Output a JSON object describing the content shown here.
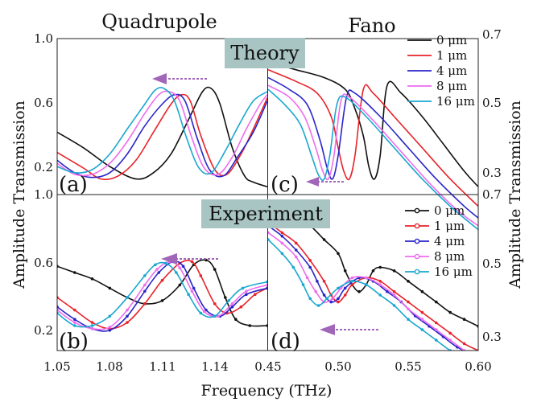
{
  "chart_data": [
    {
      "panel": "(a)",
      "type": "line",
      "column_header": "Quadrupole",
      "row_label": "Theory",
      "x_range": [
        1.05,
        1.17
      ],
      "y_range": [
        0.0,
        1.0
      ],
      "x_ticks": [
        "1.05",
        "1.08",
        "1.11",
        "1.14"
      ],
      "y_ticks": [
        "1.0",
        "0.6",
        "0.2"
      ],
      "series": [
        {
          "name": "0 μm",
          "color": "#111111",
          "x": [
            1.05,
            1.065,
            1.08,
            1.095,
            1.105,
            1.115,
            1.125,
            1.133,
            1.138,
            1.143,
            1.15,
            1.157,
            1.162,
            1.17
          ],
          "y": [
            0.4,
            0.3,
            0.18,
            0.1,
            0.14,
            0.26,
            0.48,
            0.66,
            0.68,
            0.58,
            0.3,
            0.12,
            0.08,
            0.05
          ]
        },
        {
          "name": "1 μm",
          "color": "#e8232a",
          "x": [
            1.05,
            1.065,
            1.075,
            1.085,
            1.095,
            1.105,
            1.115,
            1.121,
            1.126,
            1.132,
            1.14,
            1.147,
            1.155,
            1.162,
            1.17
          ],
          "y": [
            0.27,
            0.17,
            0.1,
            0.12,
            0.22,
            0.4,
            0.58,
            0.64,
            0.6,
            0.38,
            0.16,
            0.13,
            0.26,
            0.42,
            0.62
          ]
        },
        {
          "name": "4 μm",
          "color": "#2a25c8",
          "x": [
            1.05,
            1.06,
            1.07,
            1.08,
            1.09,
            1.1,
            1.11,
            1.117,
            1.123,
            1.13,
            1.137,
            1.145,
            1.153,
            1.162,
            1.17
          ],
          "y": [
            0.22,
            0.14,
            0.11,
            0.14,
            0.26,
            0.44,
            0.58,
            0.64,
            0.6,
            0.36,
            0.16,
            0.12,
            0.24,
            0.4,
            0.6
          ]
        },
        {
          "name": "8 μm",
          "color": "#ee6cef",
          "x": [
            1.05,
            1.06,
            1.07,
            1.08,
            1.09,
            1.1,
            1.108,
            1.114,
            1.12,
            1.127,
            1.134,
            1.142,
            1.15,
            1.158,
            1.166,
            1.17
          ],
          "y": [
            0.2,
            0.13,
            0.13,
            0.2,
            0.34,
            0.52,
            0.64,
            0.66,
            0.6,
            0.36,
            0.17,
            0.13,
            0.24,
            0.42,
            0.58,
            0.64
          ]
        },
        {
          "name": "16 μm",
          "color": "#1aa7d0",
          "x": [
            1.05,
            1.06,
            1.07,
            1.08,
            1.09,
            1.1,
            1.106,
            1.111,
            1.117,
            1.124,
            1.131,
            1.138,
            1.146,
            1.154,
            1.162,
            1.17
          ],
          "y": [
            0.18,
            0.14,
            0.16,
            0.26,
            0.42,
            0.58,
            0.67,
            0.68,
            0.6,
            0.36,
            0.17,
            0.14,
            0.28,
            0.45,
            0.6,
            0.66
          ]
        }
      ]
    },
    {
      "panel": "(c)",
      "type": "line",
      "column_header": "Fano",
      "row_label": "Theory",
      "x_range": [
        0.45,
        0.6
      ],
      "y_range": [
        0.3,
        0.7
      ],
      "y_ticks": [
        "0.7",
        "0.5",
        "0.3"
      ],
      "series": [
        {
          "name": "0 μm",
          "color": "#111111",
          "x": [
            0.45,
            0.47,
            0.49,
            0.505,
            0.512,
            0.518,
            0.522,
            0.526,
            0.53,
            0.535,
            0.545,
            0.56,
            0.575,
            0.59,
            0.6
          ],
          "y": [
            0.64,
            0.62,
            0.6,
            0.57,
            0.52,
            0.45,
            0.37,
            0.34,
            0.4,
            0.58,
            0.56,
            0.5,
            0.43,
            0.36,
            0.32
          ]
        },
        {
          "name": "1 μm",
          "color": "#e8232a",
          "x": [
            0.45,
            0.47,
            0.485,
            0.495,
            0.5,
            0.504,
            0.508,
            0.512,
            0.518,
            0.525,
            0.54,
            0.56,
            0.58,
            0.6
          ],
          "y": [
            0.62,
            0.59,
            0.56,
            0.5,
            0.42,
            0.36,
            0.34,
            0.4,
            0.57,
            0.56,
            0.5,
            0.42,
            0.34,
            0.27
          ]
        },
        {
          "name": "4 μm",
          "color": "#2a25c8",
          "x": [
            0.45,
            0.465,
            0.478,
            0.487,
            0.492,
            0.496,
            0.5,
            0.506,
            0.512,
            0.53,
            0.55,
            0.57,
            0.59,
            0.6
          ],
          "y": [
            0.6,
            0.57,
            0.53,
            0.44,
            0.37,
            0.34,
            0.4,
            0.55,
            0.56,
            0.5,
            0.42,
            0.34,
            0.27,
            0.24
          ]
        },
        {
          "name": "8 μm",
          "color": "#ee6cef",
          "x": [
            0.45,
            0.465,
            0.476,
            0.484,
            0.489,
            0.493,
            0.497,
            0.502,
            0.508,
            0.525,
            0.545,
            0.565,
            0.585,
            0.6
          ],
          "y": [
            0.58,
            0.55,
            0.5,
            0.42,
            0.36,
            0.34,
            0.4,
            0.54,
            0.55,
            0.49,
            0.41,
            0.33,
            0.26,
            0.22
          ]
        },
        {
          "name": "16 μm",
          "color": "#1aa7d0",
          "x": [
            0.45,
            0.462,
            0.473,
            0.481,
            0.486,
            0.49,
            0.494,
            0.499,
            0.505,
            0.52,
            0.54,
            0.56,
            0.58,
            0.6
          ],
          "y": [
            0.57,
            0.53,
            0.48,
            0.4,
            0.35,
            0.34,
            0.4,
            0.53,
            0.55,
            0.5,
            0.42,
            0.34,
            0.27,
            0.21
          ]
        }
      ]
    },
    {
      "panel": "(b)",
      "type": "line",
      "row_label": "Experiment",
      "x_range": [
        1.05,
        1.17
      ],
      "y_range": [
        0.0,
        1.0
      ],
      "x_ticks": [
        "1.05",
        "1.08",
        "1.11",
        "1.14"
      ],
      "y_ticks": [
        "1.0",
        "0.6",
        "0.2"
      ],
      "series": [
        {
          "name": "0 μm",
          "color": "#111111",
          "x": [
            1.05,
            1.06,
            1.07,
            1.08,
            1.09,
            1.1,
            1.11,
            1.12,
            1.128,
            1.135,
            1.14,
            1.146,
            1.152,
            1.16,
            1.17
          ],
          "y": [
            0.54,
            0.5,
            0.46,
            0.4,
            0.34,
            0.3,
            0.32,
            0.42,
            0.55,
            0.58,
            0.52,
            0.34,
            0.2,
            0.16,
            0.16
          ]
        },
        {
          "name": "1 μm",
          "color": "#e8232a",
          "x": [
            1.05,
            1.06,
            1.07,
            1.08,
            1.09,
            1.1,
            1.11,
            1.12,
            1.127,
            1.132,
            1.14,
            1.147,
            1.155,
            1.163,
            1.17
          ],
          "y": [
            0.34,
            0.26,
            0.18,
            0.14,
            0.18,
            0.3,
            0.45,
            0.56,
            0.57,
            0.48,
            0.3,
            0.24,
            0.28,
            0.36,
            0.4
          ]
        },
        {
          "name": "4 μm",
          "color": "#2a25c8",
          "x": [
            1.05,
            1.06,
            1.07,
            1.08,
            1.09,
            1.1,
            1.108,
            1.116,
            1.122,
            1.128,
            1.135,
            1.143,
            1.15,
            1.158,
            1.17
          ],
          "y": [
            0.28,
            0.2,
            0.14,
            0.13,
            0.22,
            0.38,
            0.5,
            0.57,
            0.54,
            0.4,
            0.26,
            0.22,
            0.28,
            0.36,
            0.4
          ]
        },
        {
          "name": "8 μm",
          "color": "#ee6cef",
          "x": [
            1.05,
            1.06,
            1.07,
            1.08,
            1.09,
            1.1,
            1.107,
            1.114,
            1.12,
            1.127,
            1.134,
            1.142,
            1.15,
            1.158,
            1.17
          ],
          "y": [
            0.26,
            0.18,
            0.14,
            0.15,
            0.26,
            0.42,
            0.52,
            0.57,
            0.53,
            0.38,
            0.25,
            0.22,
            0.3,
            0.38,
            0.42
          ]
        },
        {
          "name": "16 μm",
          "color": "#1aa7d0",
          "x": [
            1.05,
            1.06,
            1.07,
            1.08,
            1.09,
            1.1,
            1.106,
            1.112,
            1.118,
            1.125,
            1.132,
            1.14,
            1.148,
            1.156,
            1.17
          ],
          "y": [
            0.24,
            0.16,
            0.16,
            0.22,
            0.34,
            0.48,
            0.55,
            0.56,
            0.5,
            0.36,
            0.24,
            0.22,
            0.32,
            0.4,
            0.44
          ]
        }
      ]
    },
    {
      "panel": "(d)",
      "type": "line",
      "row_label": "Experiment",
      "x_range": [
        0.45,
        0.6
      ],
      "y_range": [
        0.25,
        0.7
      ],
      "x_ticks": [
        "0.45",
        "0.50",
        "0.55",
        "0.60"
      ],
      "y_ticks": [
        "0.7",
        "0.5",
        "0.3"
      ],
      "series": [
        {
          "name": "0 μm",
          "color": "#111111",
          "x": [
            0.45,
            0.46,
            0.47,
            0.48,
            0.49,
            0.5,
            0.505,
            0.51,
            0.515,
            0.52,
            0.525,
            0.53,
            0.54,
            0.55,
            0.56,
            0.57,
            0.58,
            0.59,
            0.6
          ],
          "y": [
            0.66,
            0.65,
            0.63,
            0.61,
            0.57,
            0.53,
            0.48,
            0.44,
            0.42,
            0.44,
            0.48,
            0.49,
            0.48,
            0.45,
            0.42,
            0.39,
            0.36,
            0.34,
            0.32
          ]
        },
        {
          "name": "1 μm",
          "color": "#e8232a",
          "x": [
            0.45,
            0.46,
            0.47,
            0.48,
            0.49,
            0.495,
            0.5,
            0.505,
            0.51,
            0.52,
            0.53,
            0.54,
            0.55,
            0.56,
            0.57,
            0.58,
            0.59,
            0.6
          ],
          "y": [
            0.62,
            0.59,
            0.56,
            0.51,
            0.45,
            0.41,
            0.39,
            0.41,
            0.44,
            0.46,
            0.45,
            0.42,
            0.39,
            0.36,
            0.33,
            0.3,
            0.27,
            0.25
          ]
        },
        {
          "name": "4 μm",
          "color": "#2a25c8",
          "x": [
            0.45,
            0.46,
            0.47,
            0.48,
            0.485,
            0.49,
            0.495,
            0.5,
            0.505,
            0.515,
            0.525,
            0.535,
            0.545,
            0.555,
            0.565,
            0.575,
            0.585,
            0.6
          ],
          "y": [
            0.61,
            0.58,
            0.54,
            0.49,
            0.45,
            0.41,
            0.39,
            0.4,
            0.43,
            0.46,
            0.45,
            0.42,
            0.39,
            0.35,
            0.32,
            0.29,
            0.26,
            0.23
          ]
        },
        {
          "name": "8 μm",
          "color": "#ee6cef",
          "x": [
            0.45,
            0.46,
            0.47,
            0.478,
            0.484,
            0.49,
            0.496,
            0.502,
            0.51,
            0.52,
            0.53,
            0.54,
            0.55,
            0.56,
            0.57,
            0.58,
            0.59,
            0.6
          ],
          "y": [
            0.59,
            0.56,
            0.52,
            0.46,
            0.42,
            0.39,
            0.4,
            0.43,
            0.46,
            0.46,
            0.44,
            0.41,
            0.37,
            0.34,
            0.31,
            0.28,
            0.25,
            0.22
          ]
        },
        {
          "name": "16 μm",
          "color": "#1aa7d0",
          "x": [
            0.45,
            0.46,
            0.468,
            0.475,
            0.48,
            0.486,
            0.492,
            0.5,
            0.51,
            0.52,
            0.53,
            0.54,
            0.55,
            0.56,
            0.57,
            0.58,
            0.6
          ],
          "y": [
            0.57,
            0.53,
            0.49,
            0.44,
            0.4,
            0.38,
            0.4,
            0.43,
            0.45,
            0.44,
            0.41,
            0.38,
            0.34,
            0.31,
            0.28,
            0.25,
            0.2
          ]
        }
      ]
    }
  ],
  "labels": {
    "header_left": "Quadrupole",
    "header_right": "Fano",
    "theory": "Theory",
    "experiment": "Experiment",
    "ylabel_left": "Amplitude Transmission",
    "ylabel_right": "Amplitude Transmission",
    "xlabel": "Frequency (THz)",
    "panel_a": "(a)",
    "panel_b": "(b)",
    "panel_c": "(c)",
    "panel_d": "(d)",
    "tick_1_05": "1.05",
    "tick_1_08": "1.08",
    "tick_1_11": "1.11",
    "tick_1_14": "1.14",
    "tick_0_45": "0.45",
    "tick_0_50": "0.50",
    "tick_0_55": "0.55",
    "tick_0_60": "0.60",
    "left_top_1_0": "1.0",
    "left_top_0_6": "0.6",
    "left_top_0_2": "0.2",
    "left_bot_1_0": "1.0",
    "left_bot_0_6": "0.6",
    "left_bot_0_2": "0.2",
    "right_top_0_7": "0.7",
    "right_top_0_5": "0.5",
    "right_top_0_3": "0.3",
    "right_bot_0_7": "0.7",
    "right_bot_0_5": "0.5",
    "right_bot_0_3": "0.3"
  },
  "legend": {
    "entries": [
      "0 μm",
      "1 μm",
      "4 μm",
      "8 μm",
      "16 μm"
    ],
    "colors": [
      "#111111",
      "#e8232a",
      "#2a25c8",
      "#ee6cef",
      "#1aa7d0"
    ]
  },
  "colors": {
    "arrow": "#a066b8",
    "label_box": "#a8c5c4"
  }
}
